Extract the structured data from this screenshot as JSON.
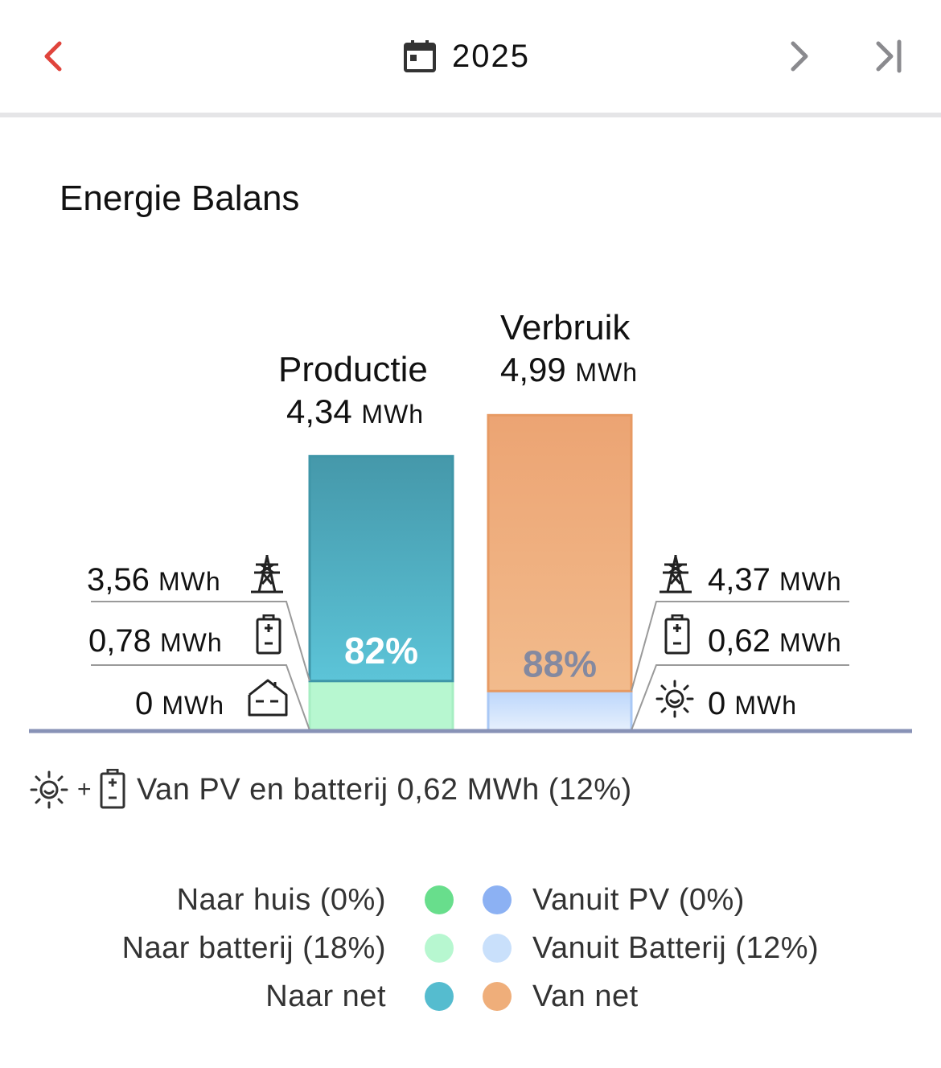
{
  "header": {
    "period": "2025",
    "colors": {
      "back": "#e0443c",
      "nav": "#8a8a8e"
    }
  },
  "title": "Energie Balans",
  "chart_data": {
    "type": "bar",
    "unit": "MWh",
    "bars": [
      {
        "name": "Productie",
        "total_text": "4,34",
        "total": 4.34,
        "percent_label": "82%",
        "segments": [
          {
            "name": "Naar net",
            "value": 3.56,
            "color": "#55bccf"
          },
          {
            "name": "Naar batterij",
            "value": 0.78,
            "color": "#b7f7d0"
          },
          {
            "name": "Naar huis",
            "value": 0,
            "color": "#68de8c"
          }
        ]
      },
      {
        "name": "Verbruik",
        "total_text": "4,99",
        "total": 4.99,
        "percent_label": "88%",
        "segments": [
          {
            "name": "Van net",
            "value": 4.37,
            "color": "#efae7a"
          },
          {
            "name": "Vanuit Batterij",
            "value": 0.62,
            "color": "#c9e0fb"
          },
          {
            "name": "Vanuit PV",
            "value": 0,
            "color": "#8cb1f3"
          }
        ]
      }
    ],
    "left_rows": [
      {
        "value": "3,56",
        "unit": "MWh",
        "icon": "power-pylon-icon"
      },
      {
        "value": "0,78",
        "unit": "MWh",
        "icon": "battery-icon"
      },
      {
        "value": "0",
        "unit": "MWh",
        "icon": "house-icon"
      }
    ],
    "right_rows": [
      {
        "value": "4,37",
        "unit": "MWh",
        "icon": "power-pylon-icon"
      },
      {
        "value": "0,62",
        "unit": "MWh",
        "icon": "battery-icon"
      },
      {
        "value": "0",
        "unit": "MWh",
        "icon": "sun-icon"
      }
    ]
  },
  "note": {
    "plus": "+",
    "text": "Van PV en batterij 0,62 MWh (12%)"
  },
  "legend": {
    "left": [
      {
        "label": "Naar huis (0%)",
        "color": "#68de8c"
      },
      {
        "label": "Naar batterij (18%)",
        "color": "#b7f7d0"
      },
      {
        "label": "Naar net",
        "color": "#55bccf"
      }
    ],
    "right": [
      {
        "label": "Vanuit PV (0%)",
        "color": "#8cb1f3"
      },
      {
        "label": "Vanuit Batterij (12%)",
        "color": "#c9e0fb"
      },
      {
        "label": "Van net",
        "color": "#efae7a"
      }
    ]
  }
}
